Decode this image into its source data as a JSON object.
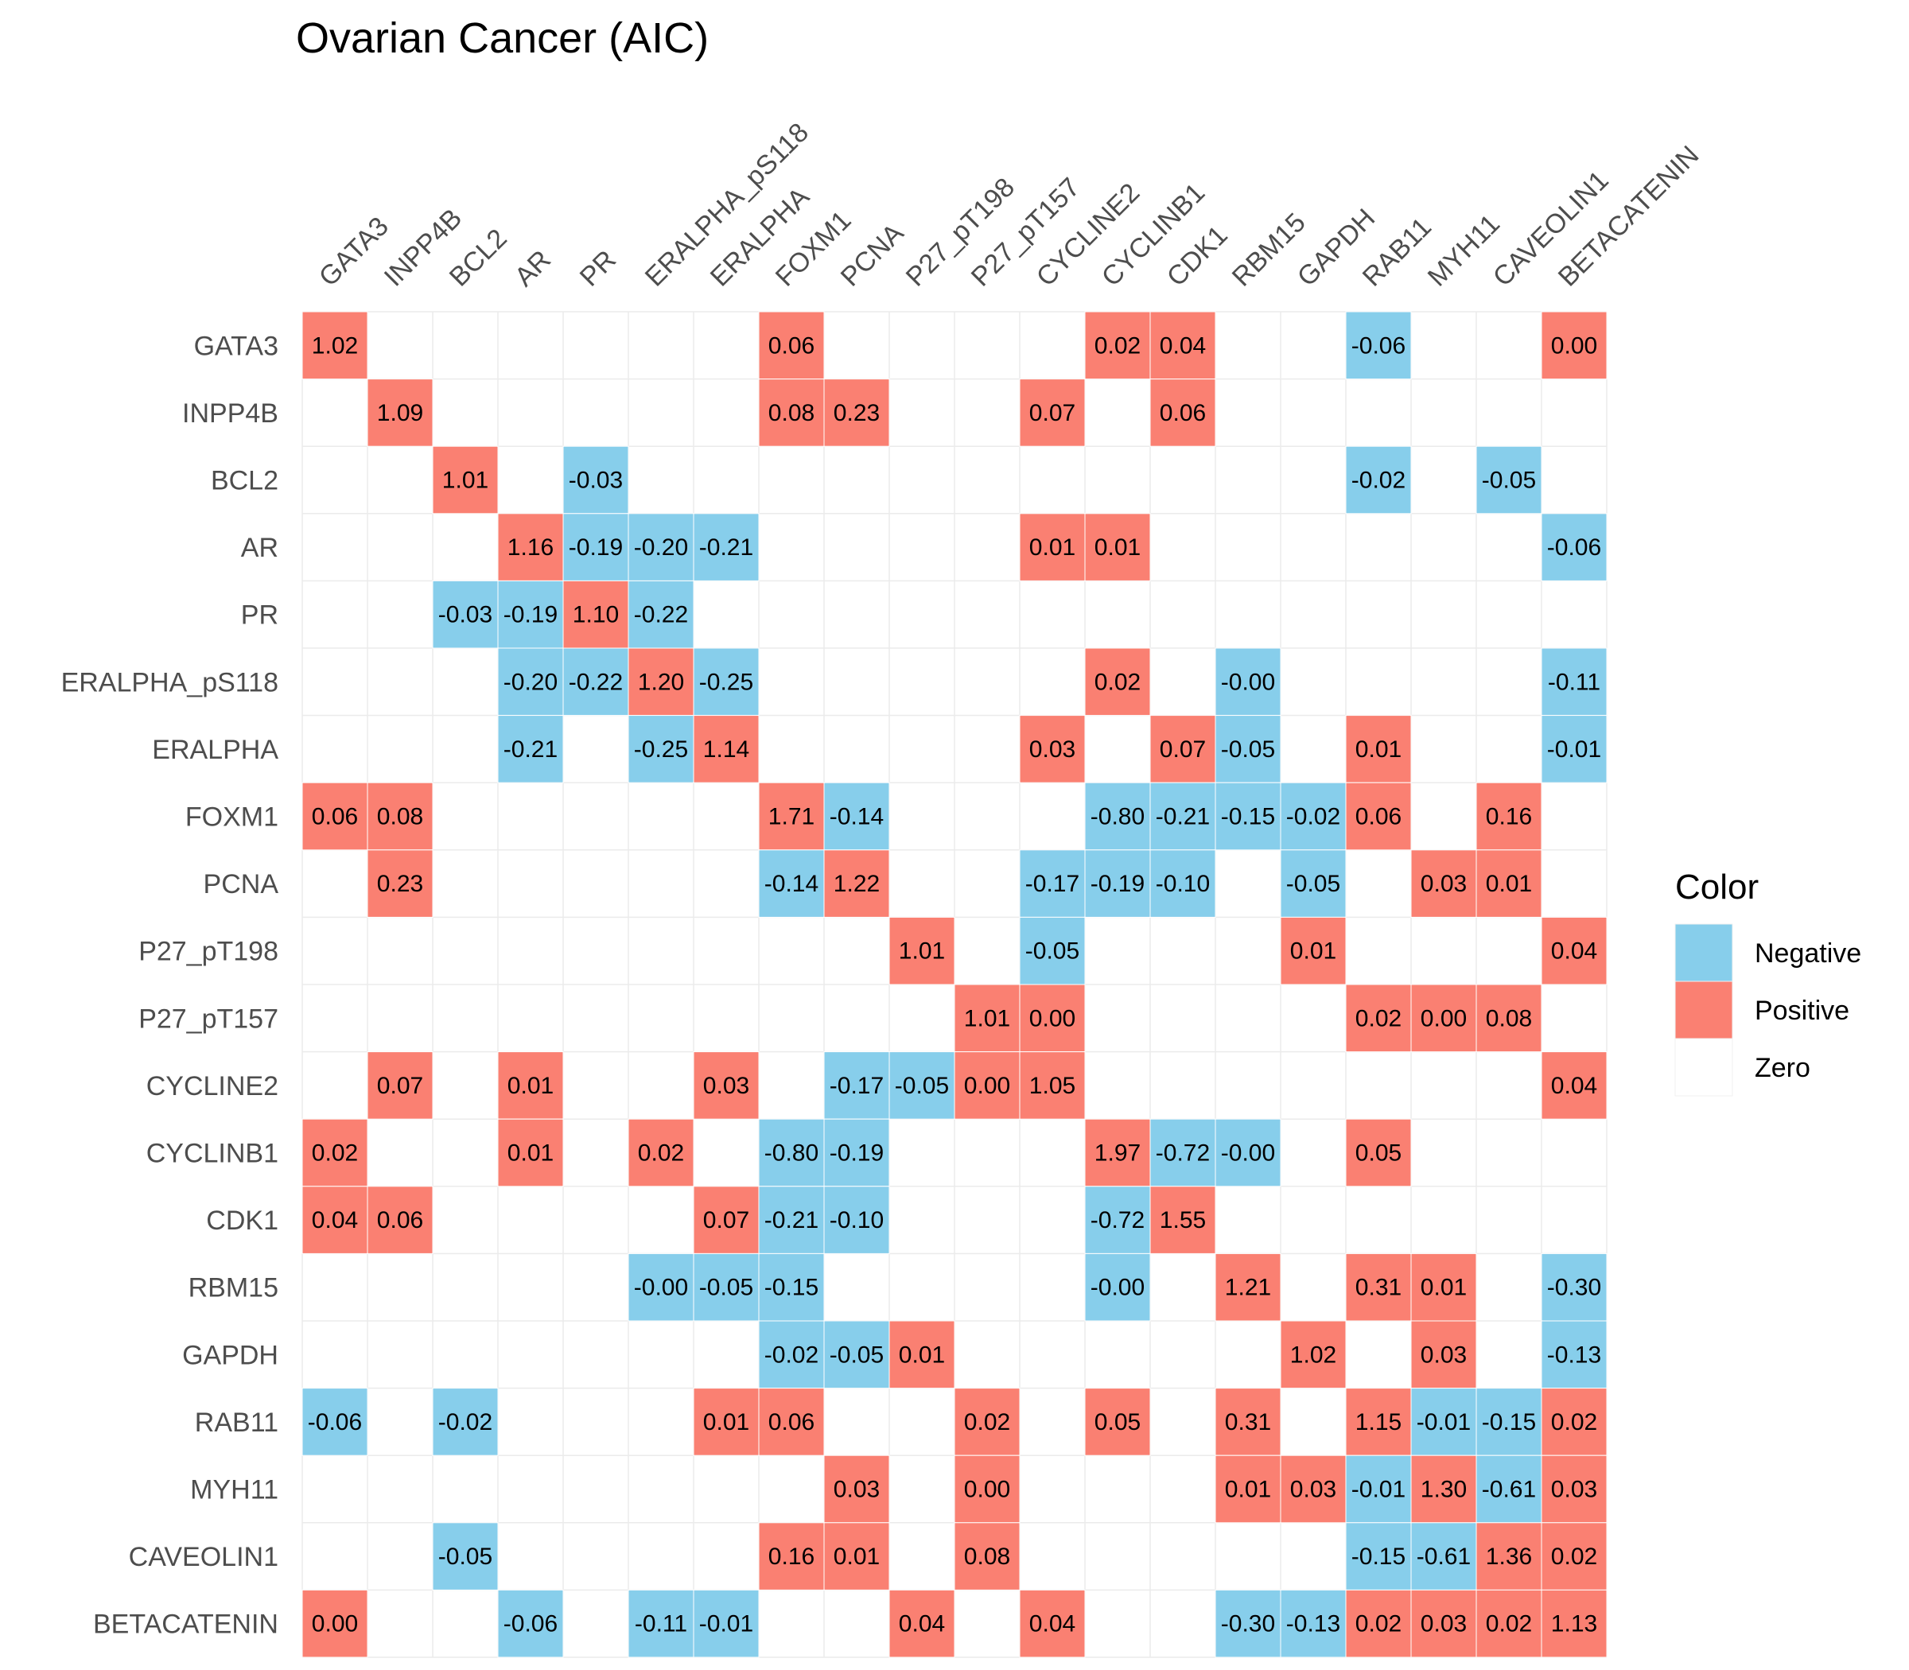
{
  "chart_data": {
    "type": "heatmap",
    "title": "Ovarian Cancer (AIC)",
    "variables": [
      "GATA3",
      "INPP4B",
      "BCL2",
      "AR",
      "PR",
      "ERALPHA_pS118",
      "ERALPHA",
      "FOXM1",
      "PCNA",
      "P27_pT198",
      "P27_pT157",
      "CYCLINE2",
      "CYCLINB1",
      "CDK1",
      "RBM15",
      "GAPDH",
      "RAB11",
      "MYH11",
      "CAVEOLIN1",
      "BETACATENIN"
    ],
    "cells": [
      {
        "row": "GATA3",
        "col": "GATA3",
        "value": "1.02",
        "color": "Positive"
      },
      {
        "row": "GATA3",
        "col": "FOXM1",
        "value": "0.06",
        "color": "Positive"
      },
      {
        "row": "GATA3",
        "col": "CYCLINB1",
        "value": "0.02",
        "color": "Positive"
      },
      {
        "row": "GATA3",
        "col": "CDK1",
        "value": "0.04",
        "color": "Positive"
      },
      {
        "row": "GATA3",
        "col": "RAB11",
        "value": "-0.06",
        "color": "Negative"
      },
      {
        "row": "GATA3",
        "col": "BETACATENIN",
        "value": "0.00",
        "color": "Positive"
      },
      {
        "row": "INPP4B",
        "col": "INPP4B",
        "value": "1.09",
        "color": "Positive"
      },
      {
        "row": "INPP4B",
        "col": "FOXM1",
        "value": "0.08",
        "color": "Positive"
      },
      {
        "row": "INPP4B",
        "col": "PCNA",
        "value": "0.23",
        "color": "Positive"
      },
      {
        "row": "INPP4B",
        "col": "CYCLINE2",
        "value": "0.07",
        "color": "Positive"
      },
      {
        "row": "INPP4B",
        "col": "CDK1",
        "value": "0.06",
        "color": "Positive"
      },
      {
        "row": "BCL2",
        "col": "BCL2",
        "value": "1.01",
        "color": "Positive"
      },
      {
        "row": "BCL2",
        "col": "PR",
        "value": "-0.03",
        "color": "Negative"
      },
      {
        "row": "BCL2",
        "col": "RAB11",
        "value": "-0.02",
        "color": "Negative"
      },
      {
        "row": "BCL2",
        "col": "CAVEOLIN1",
        "value": "-0.05",
        "color": "Negative"
      },
      {
        "row": "AR",
        "col": "AR",
        "value": "1.16",
        "color": "Positive"
      },
      {
        "row": "AR",
        "col": "PR",
        "value": "-0.19",
        "color": "Negative"
      },
      {
        "row": "AR",
        "col": "ERALPHA_pS118",
        "value": "-0.20",
        "color": "Negative"
      },
      {
        "row": "AR",
        "col": "ERALPHA",
        "value": "-0.21",
        "color": "Negative"
      },
      {
        "row": "AR",
        "col": "CYCLINE2",
        "value": "0.01",
        "color": "Positive"
      },
      {
        "row": "AR",
        "col": "CYCLINB1",
        "value": "0.01",
        "color": "Positive"
      },
      {
        "row": "AR",
        "col": "BETACATENIN",
        "value": "-0.06",
        "color": "Negative"
      },
      {
        "row": "PR",
        "col": "BCL2",
        "value": "-0.03",
        "color": "Negative"
      },
      {
        "row": "PR",
        "col": "AR",
        "value": "-0.19",
        "color": "Negative"
      },
      {
        "row": "PR",
        "col": "PR",
        "value": "1.10",
        "color": "Positive"
      },
      {
        "row": "PR",
        "col": "ERALPHA_pS118",
        "value": "-0.22",
        "color": "Negative"
      },
      {
        "row": "ERALPHA_pS118",
        "col": "AR",
        "value": "-0.20",
        "color": "Negative"
      },
      {
        "row": "ERALPHA_pS118",
        "col": "PR",
        "value": "-0.22",
        "color": "Negative"
      },
      {
        "row": "ERALPHA_pS118",
        "col": "ERALPHA_pS118",
        "value": "1.20",
        "color": "Positive"
      },
      {
        "row": "ERALPHA_pS118",
        "col": "ERALPHA",
        "value": "-0.25",
        "color": "Negative"
      },
      {
        "row": "ERALPHA_pS118",
        "col": "CYCLINB1",
        "value": "0.02",
        "color": "Positive"
      },
      {
        "row": "ERALPHA_pS118",
        "col": "RBM15",
        "value": "-0.00",
        "color": "Negative"
      },
      {
        "row": "ERALPHA_pS118",
        "col": "BETACATENIN",
        "value": "-0.11",
        "color": "Negative"
      },
      {
        "row": "ERALPHA",
        "col": "AR",
        "value": "-0.21",
        "color": "Negative"
      },
      {
        "row": "ERALPHA",
        "col": "ERALPHA_pS118",
        "value": "-0.25",
        "color": "Negative"
      },
      {
        "row": "ERALPHA",
        "col": "ERALPHA",
        "value": "1.14",
        "color": "Positive"
      },
      {
        "row": "ERALPHA",
        "col": "CYCLINE2",
        "value": "0.03",
        "color": "Positive"
      },
      {
        "row": "ERALPHA",
        "col": "CDK1",
        "value": "0.07",
        "color": "Positive"
      },
      {
        "row": "ERALPHA",
        "col": "RBM15",
        "value": "-0.05",
        "color": "Negative"
      },
      {
        "row": "ERALPHA",
        "col": "RAB11",
        "value": "0.01",
        "color": "Positive"
      },
      {
        "row": "ERALPHA",
        "col": "BETACATENIN",
        "value": "-0.01",
        "color": "Negative"
      },
      {
        "row": "FOXM1",
        "col": "GATA3",
        "value": "0.06",
        "color": "Positive"
      },
      {
        "row": "FOXM1",
        "col": "INPP4B",
        "value": "0.08",
        "color": "Positive"
      },
      {
        "row": "FOXM1",
        "col": "FOXM1",
        "value": "1.71",
        "color": "Positive"
      },
      {
        "row": "FOXM1",
        "col": "PCNA",
        "value": "-0.14",
        "color": "Negative"
      },
      {
        "row": "FOXM1",
        "col": "CYCLINB1",
        "value": "-0.80",
        "color": "Negative"
      },
      {
        "row": "FOXM1",
        "col": "CDK1",
        "value": "-0.21",
        "color": "Negative"
      },
      {
        "row": "FOXM1",
        "col": "RBM15",
        "value": "-0.15",
        "color": "Negative"
      },
      {
        "row": "FOXM1",
        "col": "GAPDH",
        "value": "-0.02",
        "color": "Negative"
      },
      {
        "row": "FOXM1",
        "col": "RAB11",
        "value": "0.06",
        "color": "Positive"
      },
      {
        "row": "FOXM1",
        "col": "CAVEOLIN1",
        "value": "0.16",
        "color": "Positive"
      },
      {
        "row": "PCNA",
        "col": "INPP4B",
        "value": "0.23",
        "color": "Positive"
      },
      {
        "row": "PCNA",
        "col": "FOXM1",
        "value": "-0.14",
        "color": "Negative"
      },
      {
        "row": "PCNA",
        "col": "PCNA",
        "value": "1.22",
        "color": "Positive"
      },
      {
        "row": "PCNA",
        "col": "CYCLINE2",
        "value": "-0.17",
        "color": "Negative"
      },
      {
        "row": "PCNA",
        "col": "CYCLINB1",
        "value": "-0.19",
        "color": "Negative"
      },
      {
        "row": "PCNA",
        "col": "CDK1",
        "value": "-0.10",
        "color": "Negative"
      },
      {
        "row": "PCNA",
        "col": "GAPDH",
        "value": "-0.05",
        "color": "Negative"
      },
      {
        "row": "PCNA",
        "col": "MYH11",
        "value": "0.03",
        "color": "Positive"
      },
      {
        "row": "PCNA",
        "col": "CAVEOLIN1",
        "value": "0.01",
        "color": "Positive"
      },
      {
        "row": "P27_pT198",
        "col": "P27_pT198",
        "value": "1.01",
        "color": "Positive"
      },
      {
        "row": "P27_pT198",
        "col": "CYCLINE2",
        "value": "-0.05",
        "color": "Negative"
      },
      {
        "row": "P27_pT198",
        "col": "GAPDH",
        "value": "0.01",
        "color": "Positive"
      },
      {
        "row": "P27_pT198",
        "col": "BETACATENIN",
        "value": "0.04",
        "color": "Positive"
      },
      {
        "row": "P27_pT157",
        "col": "P27_pT157",
        "value": "1.01",
        "color": "Positive"
      },
      {
        "row": "P27_pT157",
        "col": "CYCLINE2",
        "value": "0.00",
        "color": "Positive"
      },
      {
        "row": "P27_pT157",
        "col": "RAB11",
        "value": "0.02",
        "color": "Positive"
      },
      {
        "row": "P27_pT157",
        "col": "MYH11",
        "value": "0.00",
        "color": "Positive"
      },
      {
        "row": "P27_pT157",
        "col": "CAVEOLIN1",
        "value": "0.08",
        "color": "Positive"
      },
      {
        "row": "CYCLINE2",
        "col": "INPP4B",
        "value": "0.07",
        "color": "Positive"
      },
      {
        "row": "CYCLINE2",
        "col": "AR",
        "value": "0.01",
        "color": "Positive"
      },
      {
        "row": "CYCLINE2",
        "col": "ERALPHA",
        "value": "0.03",
        "color": "Positive"
      },
      {
        "row": "CYCLINE2",
        "col": "PCNA",
        "value": "-0.17",
        "color": "Negative"
      },
      {
        "row": "CYCLINE2",
        "col": "P27_pT198",
        "value": "-0.05",
        "color": "Negative"
      },
      {
        "row": "CYCLINE2",
        "col": "P27_pT157",
        "value": "0.00",
        "color": "Positive"
      },
      {
        "row": "CYCLINE2",
        "col": "CYCLINE2",
        "value": "1.05",
        "color": "Positive"
      },
      {
        "row": "CYCLINE2",
        "col": "BETACATENIN",
        "value": "0.04",
        "color": "Positive"
      },
      {
        "row": "CYCLINB1",
        "col": "GATA3",
        "value": "0.02",
        "color": "Positive"
      },
      {
        "row": "CYCLINB1",
        "col": "AR",
        "value": "0.01",
        "color": "Positive"
      },
      {
        "row": "CYCLINB1",
        "col": "ERALPHA_pS118",
        "value": "0.02",
        "color": "Positive"
      },
      {
        "row": "CYCLINB1",
        "col": "FOXM1",
        "value": "-0.80",
        "color": "Negative"
      },
      {
        "row": "CYCLINB1",
        "col": "PCNA",
        "value": "-0.19",
        "color": "Negative"
      },
      {
        "row": "CYCLINB1",
        "col": "CYCLINB1",
        "value": "1.97",
        "color": "Positive"
      },
      {
        "row": "CYCLINB1",
        "col": "CDK1",
        "value": "-0.72",
        "color": "Negative"
      },
      {
        "row": "CYCLINB1",
        "col": "RBM15",
        "value": "-0.00",
        "color": "Negative"
      },
      {
        "row": "CYCLINB1",
        "col": "RAB11",
        "value": "0.05",
        "color": "Positive"
      },
      {
        "row": "CDK1",
        "col": "GATA3",
        "value": "0.04",
        "color": "Positive"
      },
      {
        "row": "CDK1",
        "col": "INPP4B",
        "value": "0.06",
        "color": "Positive"
      },
      {
        "row": "CDK1",
        "col": "ERALPHA",
        "value": "0.07",
        "color": "Positive"
      },
      {
        "row": "CDK1",
        "col": "FOXM1",
        "value": "-0.21",
        "color": "Negative"
      },
      {
        "row": "CDK1",
        "col": "PCNA",
        "value": "-0.10",
        "color": "Negative"
      },
      {
        "row": "CDK1",
        "col": "CYCLINB1",
        "value": "-0.72",
        "color": "Negative"
      },
      {
        "row": "CDK1",
        "col": "CDK1",
        "value": "1.55",
        "color": "Positive"
      },
      {
        "row": "RBM15",
        "col": "ERALPHA_pS118",
        "value": "-0.00",
        "color": "Negative"
      },
      {
        "row": "RBM15",
        "col": "ERALPHA",
        "value": "-0.05",
        "color": "Negative"
      },
      {
        "row": "RBM15",
        "col": "FOXM1",
        "value": "-0.15",
        "color": "Negative"
      },
      {
        "row": "RBM15",
        "col": "CYCLINB1",
        "value": "-0.00",
        "color": "Negative"
      },
      {
        "row": "RBM15",
        "col": "RBM15",
        "value": "1.21",
        "color": "Positive"
      },
      {
        "row": "RBM15",
        "col": "RAB11",
        "value": "0.31",
        "color": "Positive"
      },
      {
        "row": "RBM15",
        "col": "MYH11",
        "value": "0.01",
        "color": "Positive"
      },
      {
        "row": "RBM15",
        "col": "BETACATENIN",
        "value": "-0.30",
        "color": "Negative"
      },
      {
        "row": "GAPDH",
        "col": "FOXM1",
        "value": "-0.02",
        "color": "Negative"
      },
      {
        "row": "GAPDH",
        "col": "PCNA",
        "value": "-0.05",
        "color": "Negative"
      },
      {
        "row": "GAPDH",
        "col": "P27_pT198",
        "value": "0.01",
        "color": "Positive"
      },
      {
        "row": "GAPDH",
        "col": "GAPDH",
        "value": "1.02",
        "color": "Positive"
      },
      {
        "row": "GAPDH",
        "col": "MYH11",
        "value": "0.03",
        "color": "Positive"
      },
      {
        "row": "GAPDH",
        "col": "BETACATENIN",
        "value": "-0.13",
        "color": "Negative"
      },
      {
        "row": "RAB11",
        "col": "GATA3",
        "value": "-0.06",
        "color": "Negative"
      },
      {
        "row": "RAB11",
        "col": "BCL2",
        "value": "-0.02",
        "color": "Negative"
      },
      {
        "row": "RAB11",
        "col": "ERALPHA",
        "value": "0.01",
        "color": "Positive"
      },
      {
        "row": "RAB11",
        "col": "FOXM1",
        "value": "0.06",
        "color": "Positive"
      },
      {
        "row": "RAB11",
        "col": "P27_pT157",
        "value": "0.02",
        "color": "Positive"
      },
      {
        "row": "RAB11",
        "col": "CYCLINB1",
        "value": "0.05",
        "color": "Positive"
      },
      {
        "row": "RAB11",
        "col": "RBM15",
        "value": "0.31",
        "color": "Positive"
      },
      {
        "row": "RAB11",
        "col": "RAB11",
        "value": "1.15",
        "color": "Positive"
      },
      {
        "row": "RAB11",
        "col": "MYH11",
        "value": "-0.01",
        "color": "Negative"
      },
      {
        "row": "RAB11",
        "col": "CAVEOLIN1",
        "value": "-0.15",
        "color": "Negative"
      },
      {
        "row": "RAB11",
        "col": "BETACATENIN",
        "value": "0.02",
        "color": "Positive"
      },
      {
        "row": "MYH11",
        "col": "PCNA",
        "value": "0.03",
        "color": "Positive"
      },
      {
        "row": "MYH11",
        "col": "P27_pT157",
        "value": "0.00",
        "color": "Positive"
      },
      {
        "row": "MYH11",
        "col": "RBM15",
        "value": "0.01",
        "color": "Positive"
      },
      {
        "row": "MYH11",
        "col": "GAPDH",
        "value": "0.03",
        "color": "Positive"
      },
      {
        "row": "MYH11",
        "col": "RAB11",
        "value": "-0.01",
        "color": "Negative"
      },
      {
        "row": "MYH11",
        "col": "MYH11",
        "value": "1.30",
        "color": "Positive"
      },
      {
        "row": "MYH11",
        "col": "CAVEOLIN1",
        "value": "-0.61",
        "color": "Negative"
      },
      {
        "row": "MYH11",
        "col": "BETACATENIN",
        "value": "0.03",
        "color": "Positive"
      },
      {
        "row": "CAVEOLIN1",
        "col": "BCL2",
        "value": "-0.05",
        "color": "Negative"
      },
      {
        "row": "CAVEOLIN1",
        "col": "FOXM1",
        "value": "0.16",
        "color": "Positive"
      },
      {
        "row": "CAVEOLIN1",
        "col": "PCNA",
        "value": "0.01",
        "color": "Positive"
      },
      {
        "row": "CAVEOLIN1",
        "col": "P27_pT157",
        "value": "0.08",
        "color": "Positive"
      },
      {
        "row": "CAVEOLIN1",
        "col": "RAB11",
        "value": "-0.15",
        "color": "Negative"
      },
      {
        "row": "CAVEOLIN1",
        "col": "MYH11",
        "value": "-0.61",
        "color": "Negative"
      },
      {
        "row": "CAVEOLIN1",
        "col": "CAVEOLIN1",
        "value": "1.36",
        "color": "Positive"
      },
      {
        "row": "CAVEOLIN1",
        "col": "BETACATENIN",
        "value": "0.02",
        "color": "Positive"
      },
      {
        "row": "BETACATENIN",
        "col": "GATA3",
        "value": "0.00",
        "color": "Positive"
      },
      {
        "row": "BETACATENIN",
        "col": "AR",
        "value": "-0.06",
        "color": "Negative"
      },
      {
        "row": "BETACATENIN",
        "col": "ERALPHA_pS118",
        "value": "-0.11",
        "color": "Negative"
      },
      {
        "row": "BETACATENIN",
        "col": "ERALPHA",
        "value": "-0.01",
        "color": "Negative"
      },
      {
        "row": "BETACATENIN",
        "col": "P27_pT198",
        "value": "0.04",
        "color": "Positive"
      },
      {
        "row": "BETACATENIN",
        "col": "CYCLINE2",
        "value": "0.04",
        "color": "Positive"
      },
      {
        "row": "BETACATENIN",
        "col": "RBM15",
        "value": "-0.30",
        "color": "Negative"
      },
      {
        "row": "BETACATENIN",
        "col": "GAPDH",
        "value": "-0.13",
        "color": "Negative"
      },
      {
        "row": "BETACATENIN",
        "col": "RAB11",
        "value": "0.02",
        "color": "Positive"
      },
      {
        "row": "BETACATENIN",
        "col": "MYH11",
        "value": "0.03",
        "color": "Positive"
      },
      {
        "row": "BETACATENIN",
        "col": "CAVEOLIN1",
        "value": "0.02",
        "color": "Positive"
      },
      {
        "row": "BETACATENIN",
        "col": "BETACATENIN",
        "value": "1.13",
        "color": "Positive"
      }
    ],
    "legend": {
      "title": "Color",
      "placement": "right",
      "entries": [
        {
          "label": "Negative",
          "color": "#87CEEB"
        },
        {
          "label": "Positive",
          "color": "#FA8072"
        },
        {
          "label": "Zero",
          "color": "#FFFFFF"
        }
      ]
    },
    "grid": true,
    "grid_color": "#EBEBEB"
  }
}
